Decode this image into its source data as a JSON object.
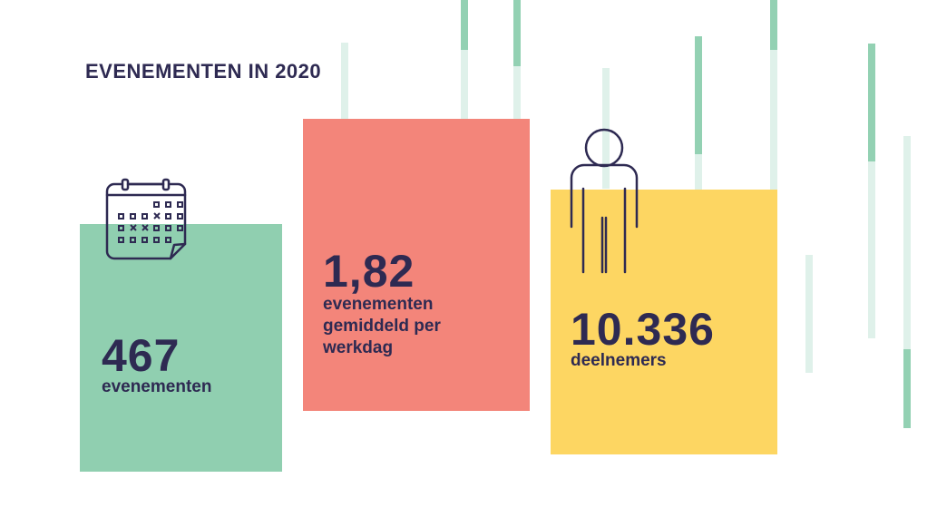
{
  "title": "EVENEMENTEN IN 2020",
  "stats": [
    {
      "value": "467",
      "label": "evenementen",
      "color": "#90cfb0",
      "icon": "calendar-icon"
    },
    {
      "value": "1,82",
      "label": "evenementen gemiddeld per werkdag",
      "label_lines": [
        "evenementen",
        "gemiddeld per",
        "werkdag"
      ],
      "color": "#f3857a"
    },
    {
      "value": "10.336",
      "label": "deelnemers",
      "color": "#fdd662",
      "icon": "person-icon"
    }
  ],
  "colors": {
    "text": "#2e2a52",
    "stripe_light": "#dff1ea",
    "stripe_mid": "#93d1b3"
  }
}
